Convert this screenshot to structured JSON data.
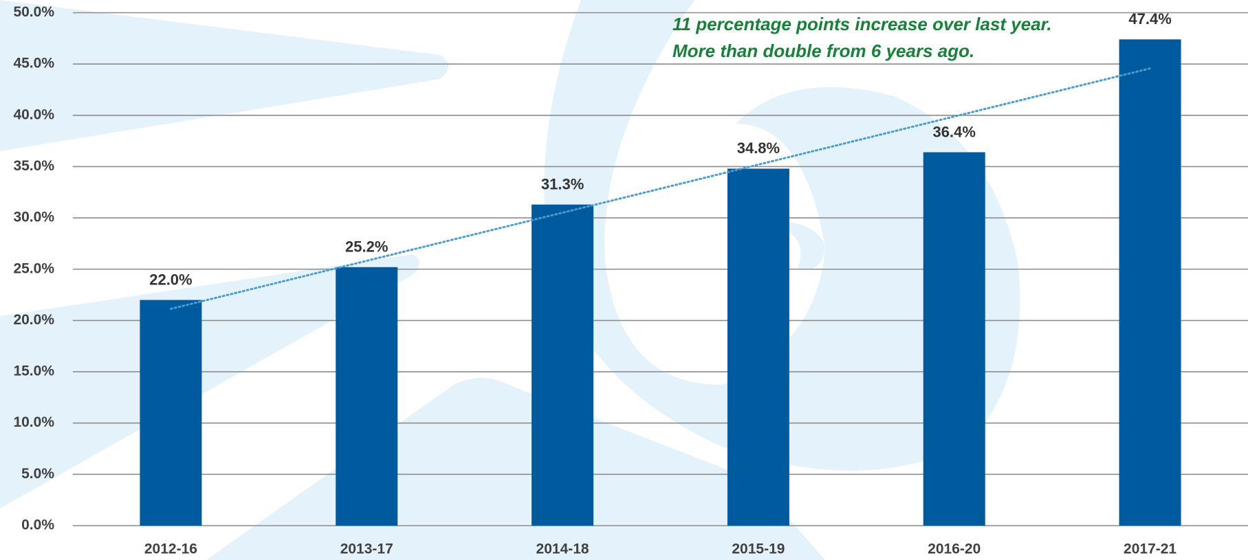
{
  "chart_data": {
    "type": "bar",
    "annotation": [
      "11 percentage points increase over last year.",
      "More than double from 6 years ago."
    ],
    "categories": [
      "2012-16",
      "2013-17",
      "2014-18",
      "2015-19",
      "2016-20",
      "2017-21"
    ],
    "values": [
      22.0,
      25.2,
      31.3,
      34.8,
      36.4,
      47.4
    ],
    "value_labels": [
      "22.0%",
      "25.2%",
      "31.3%",
      "34.8%",
      "36.4%",
      "47.4%"
    ],
    "color": "#005b9e",
    "trendline": "linear",
    "trendline_color": "#4a9bd4",
    "ylim": [
      0,
      50
    ],
    "yticks": [
      {
        "value": 0,
        "label": "0.0%"
      },
      {
        "value": 5,
        "label": "5.0%"
      },
      {
        "value": 10,
        "label": "10.0%"
      },
      {
        "value": 15,
        "label": "15.0%"
      },
      {
        "value": 20,
        "label": "20.0%"
      },
      {
        "value": 25,
        "label": "25.0%"
      },
      {
        "value": 30,
        "label": "30.0%"
      },
      {
        "value": 35,
        "label": "35.0%"
      },
      {
        "value": 40,
        "label": "40.0%"
      },
      {
        "value": 45,
        "label": "45.0%"
      },
      {
        "value": 50,
        "label": "50.0%"
      }
    ],
    "grid": true
  }
}
